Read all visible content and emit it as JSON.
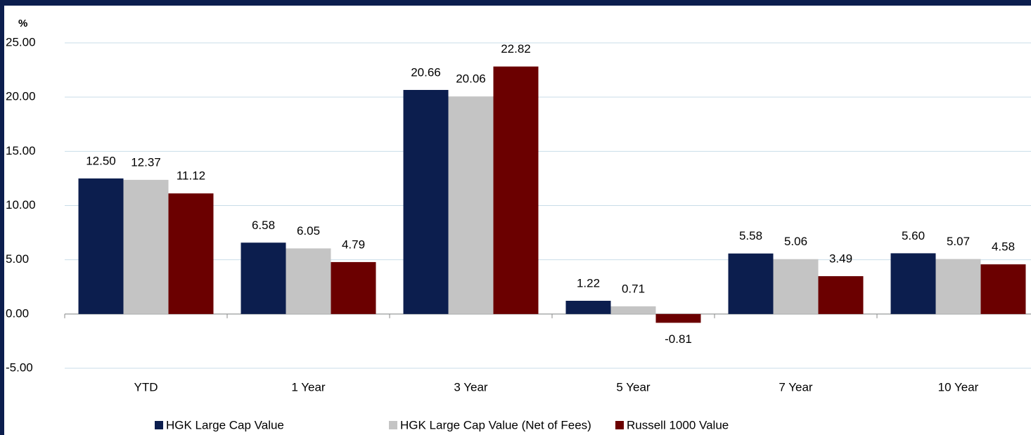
{
  "chart_data": {
    "type": "bar",
    "y_label": "%",
    "categories": [
      "YTD",
      "1 Year",
      "3 Year",
      "5 Year",
      "7 Year",
      "10 Year"
    ],
    "series": [
      {
        "name": "HGK Large Cap Value",
        "color": "#0c1e4e",
        "values": [
          12.5,
          6.58,
          20.66,
          1.22,
          5.58,
          5.6
        ],
        "value_labels": [
          "12.50",
          "6.58",
          "20.66",
          "1.22",
          "5.58",
          "5.60"
        ]
      },
      {
        "name": "HGK Large Cap Value (Net of Fees)",
        "color": "#c4c4c4",
        "values": [
          12.37,
          6.05,
          20.06,
          0.71,
          5.06,
          5.07
        ],
        "value_labels": [
          "12.37",
          "6.05",
          "20.06",
          "0.71",
          "5.06",
          "5.07"
        ]
      },
      {
        "name": "Russell 1000 Value",
        "color": "#6b0000",
        "values": [
          11.12,
          4.79,
          22.82,
          -0.81,
          3.49,
          4.58
        ],
        "value_labels": [
          "11.12",
          "4.79",
          "22.82",
          "-0.81",
          "3.49",
          "4.58"
        ]
      }
    ],
    "ylim": [
      -5,
      25
    ],
    "yticks": [
      {
        "value": -5,
        "label": "-5.00"
      },
      {
        "value": 0,
        "label": "0.00"
      },
      {
        "value": 5,
        "label": "5.00"
      },
      {
        "value": 10,
        "label": "10.00"
      },
      {
        "value": 15,
        "label": "15.00"
      },
      {
        "value": 20,
        "label": "20.00"
      },
      {
        "value": 25,
        "label": "25.00"
      }
    ],
    "grid": true,
    "legend": "bottom"
  }
}
